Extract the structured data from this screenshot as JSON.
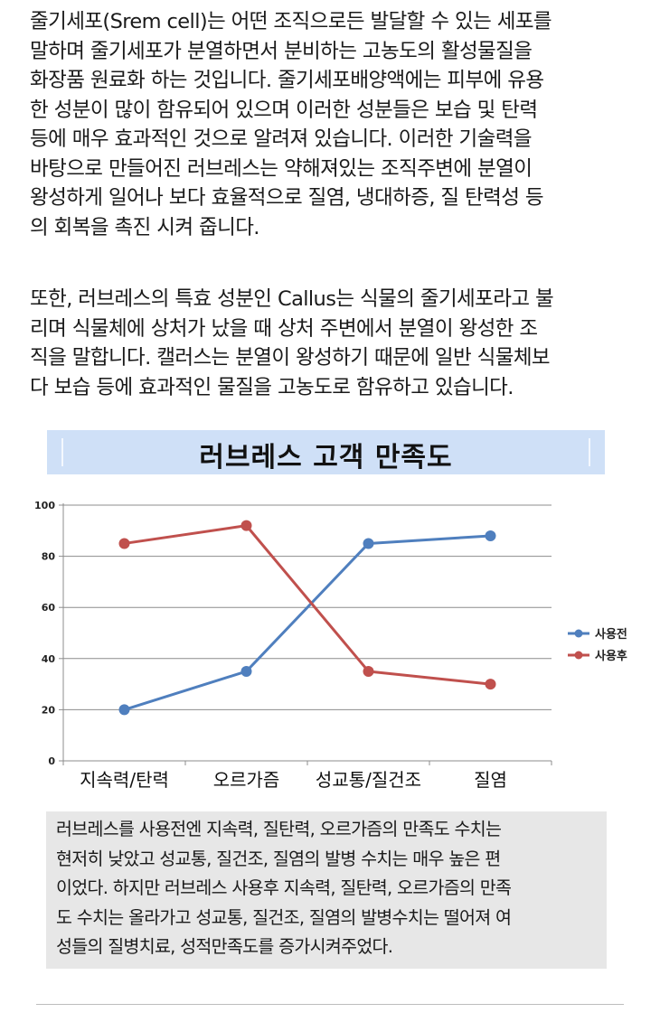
{
  "intro": {
    "paragraph1": "줄기세포(Srem cell)는 어떤 조직으로든 발달할 수 있는 세포를\n말하며 줄기세포가 분열하면서 분비하는 고농도의 활성물질을\n화장품 원료화 하는 것입니다. 줄기세포배양액에는 피부에 유용\n한 성분이 많이 함유되어 있으며 이러한 성분들은 보습 및 탄력\n등에 매우 효과적인 것으로 알려져 있습니다. 이러한 기술력을\n바탕으로 만들어진 러브레스는 약해져있는 조직주변에 분열이\n왕성하게 일어나 보다 효율적으로 질염, 냉대하증, 질 탄력성 등\n의 회복을 촉진 시켜 줍니다.",
    "paragraph2": "또한, 러브레스의 특효 성분인 Callus는 식물의 줄기세포라고 불\n리며 식물체에 상처가 났을 때 상처 주변에서 분열이 왕성한 조\n직을 말합니다. 캘러스는 분열이 왕성하기 때문에 일반 식물체보\n다 보습 등에 효과적인 물질을 고농도로 함유하고 있습니다."
  },
  "chart_data": {
    "type": "line",
    "title": "러브레스 고객 만족도",
    "categories": [
      "지속력/탄력",
      "오르가즘",
      "성교통/질건조",
      "질염"
    ],
    "series": [
      {
        "name": "사용전",
        "values": [
          20,
          35,
          85,
          88
        ],
        "color": "#4f7fbe"
      },
      {
        "name": "사용후",
        "values": [
          85,
          92,
          35,
          30
        ],
        "color": "#c0504d"
      }
    ],
    "ylim": [
      0,
      100
    ],
    "yticks": [
      0,
      20,
      40,
      60,
      80,
      100
    ],
    "grid": true,
    "legend": "right"
  },
  "note": {
    "text": "러브레스를 사용전엔 지속력, 질탄력, 오르가즘의 만족도 수치는\n현저히 낮았고 성교통, 질건조, 질염의 발병 수치는 매우 높은 편\n이었다. 하지만 러브레스 사용후 지속력, 질탄력, 오르가즘의 만족\n도 수치는 올라가고 성교통, 질건조, 질염의 발병수치는 떨어져 여\n성들의 질병치료, 성적만족도를 증가시켜주었다."
  }
}
